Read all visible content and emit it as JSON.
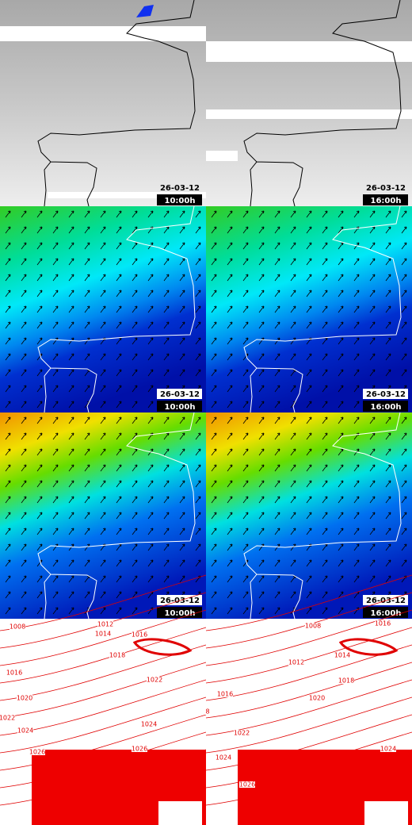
{
  "rows": [
    {
      "panels": [
        {
          "date": "26-03-12",
          "time": "10:00h"
        },
        {
          "date": "26-03-12",
          "time": "16:00h"
        }
      ]
    },
    {
      "panels": [
        {
          "date": "26-03-12",
          "time": "10:00h"
        },
        {
          "date": "26-03-12",
          "time": "16:00h"
        }
      ]
    },
    {
      "panels": [
        {
          "date": "26-03-12",
          "time": "10:00h"
        },
        {
          "date": "26-03-12",
          "time": "16:00h"
        }
      ]
    },
    {
      "panels": [
        {
          "isobar_labels": [
            "1008",
            "1012",
            "1014",
            "1016",
            "1018",
            "1016",
            "1020",
            "1022",
            "1022",
            "1024",
            "1024",
            "1026",
            "1026"
          ]
        },
        {
          "isobar_labels": [
            "1008",
            "1016",
            "1014",
            "1012",
            "1018",
            "1016",
            "1020",
            "8",
            "1022",
            "1024",
            "1024",
            "1026"
          ]
        }
      ]
    }
  ]
}
